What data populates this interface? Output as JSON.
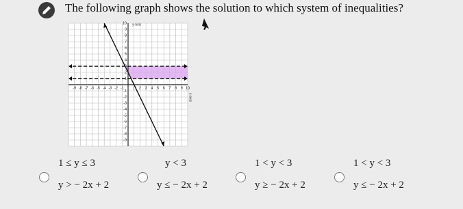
{
  "question": "The following graph shows the solution to which system of inequalities?",
  "graph": {
    "y_axis_label": "y-axis",
    "x_axis_label": "x-axis",
    "xticks": [
      -9,
      -8,
      -7,
      -6,
      -5,
      -4,
      -3,
      -2,
      -1,
      1,
      2,
      3,
      4,
      5,
      6,
      7,
      8,
      9,
      10
    ],
    "yticks": [
      10,
      9,
      8,
      7,
      6,
      5,
      4,
      3,
      2,
      1,
      -1,
      -2,
      -3,
      -4,
      -5,
      -6,
      -7,
      -8,
      -9
    ]
  },
  "options": [
    {
      "line1": "1 ≤ y ≤ 3",
      "line2": "y > − 2x + 2"
    },
    {
      "line1": "y < 3",
      "line2": "y ≤ − 2x + 2"
    },
    {
      "line1": "1 < y < 3",
      "line2": "y ≥ − 2x + 2"
    },
    {
      "line1": "1 < y < 3",
      "line2": "y ≤ − 2x + 2"
    }
  ]
}
